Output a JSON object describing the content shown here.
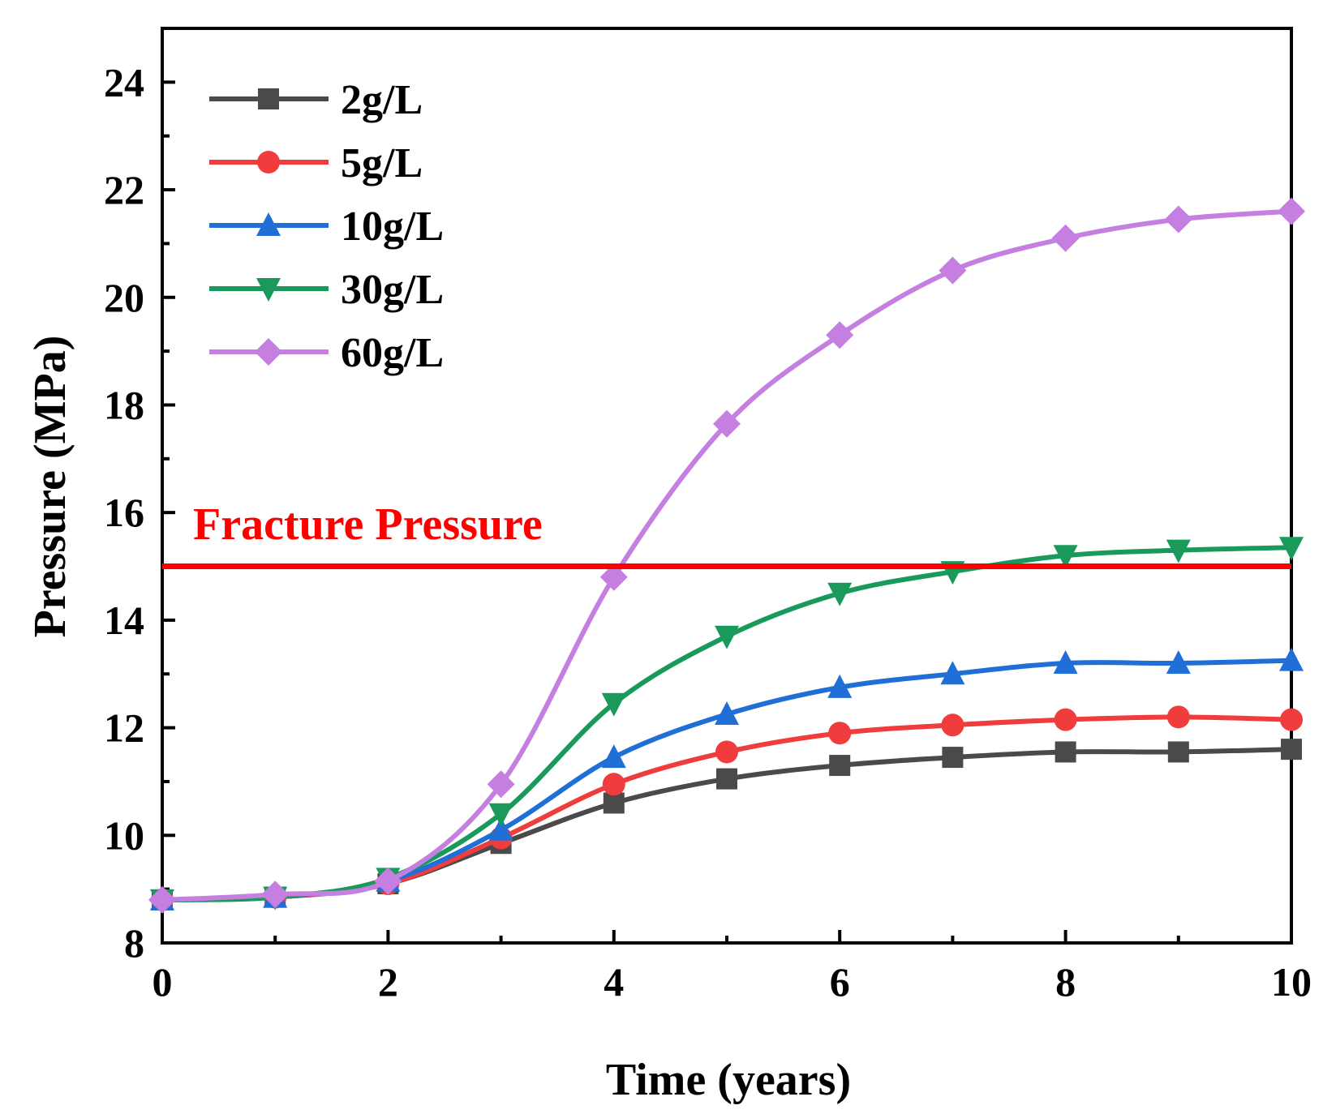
{
  "chart_data": {
    "type": "line",
    "title": "",
    "xlabel": "Time (years)",
    "ylabel": "Pressure (MPa)",
    "xlim": [
      0,
      10
    ],
    "ylim": [
      8,
      25
    ],
    "x": [
      0,
      1,
      2,
      3,
      4,
      5,
      6,
      7,
      8,
      9,
      10
    ],
    "xticks": [
      "0",
      "2",
      "4",
      "6",
      "8",
      "10"
    ],
    "xtick_values": [
      0,
      2,
      4,
      6,
      8,
      10
    ],
    "yticks": [
      "8",
      "10",
      "12",
      "14",
      "16",
      "18",
      "20",
      "22",
      "24"
    ],
    "ytick_values": [
      8,
      10,
      12,
      14,
      16,
      18,
      20,
      22,
      24
    ],
    "grid": false,
    "legend_position": "top-left",
    "series": [
      {
        "name": "2g/L",
        "color": "#4a4a4a",
        "marker": "square",
        "values": [
          8.8,
          8.85,
          9.1,
          9.85,
          10.6,
          11.05,
          11.3,
          11.45,
          11.55,
          11.55,
          11.6
        ]
      },
      {
        "name": "5g/L",
        "color": "#f03c3c",
        "marker": "circle",
        "values": [
          8.8,
          8.85,
          9.1,
          9.95,
          10.95,
          11.55,
          11.9,
          12.05,
          12.15,
          12.2,
          12.15
        ]
      },
      {
        "name": "10g/L",
        "color": "#1f6fd6",
        "marker": "triangle-up",
        "values": [
          8.8,
          8.85,
          9.15,
          10.1,
          11.45,
          12.25,
          12.75,
          13.0,
          13.2,
          13.2,
          13.25
        ]
      },
      {
        "name": "30g/L",
        "color": "#1a9a5a",
        "marker": "triangle-down",
        "values": [
          8.8,
          8.85,
          9.2,
          10.4,
          12.45,
          13.7,
          14.5,
          14.9,
          15.2,
          15.3,
          15.35
        ]
      },
      {
        "name": "60g/L",
        "color": "#c47fe0",
        "marker": "diamond",
        "values": [
          8.8,
          8.9,
          9.15,
          10.95,
          14.8,
          17.65,
          19.3,
          20.5,
          21.1,
          21.45,
          21.6
        ]
      }
    ],
    "reference_line": {
      "label": "Fracture Pressure",
      "y": 15,
      "color": "#ff0000"
    }
  }
}
